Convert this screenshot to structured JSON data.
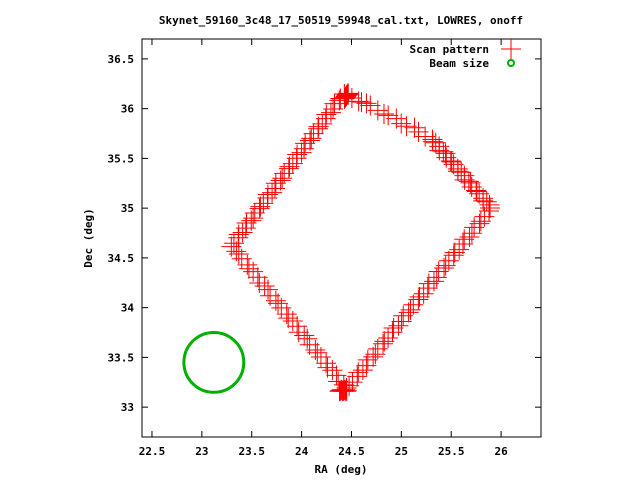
{
  "chart_data": {
    "type": "scatter",
    "title": "Skynet_59160_3c48_17_50519_59948_cal.txt, LOWRES, onoff",
    "xlabel": "RA (deg)",
    "ylabel": "Dec (deg)",
    "xlim": [
      22.4,
      26.4
    ],
    "ylim": [
      32.7,
      36.7
    ],
    "x_ticks": [
      "22.5",
      "23",
      "23.5",
      "24",
      "24.5",
      "25",
      "25.5",
      "26"
    ],
    "y_ticks": [
      "33",
      "33.5",
      "34",
      "34.5",
      "35",
      "35.5",
      "36",
      "36.5"
    ],
    "legend_position": "top-right",
    "series": [
      {
        "name": "Scan pattern",
        "marker": "plus",
        "color": "#ff0000",
        "path_vertices": [
          {
            "x": 24.45,
            "y": 33.18
          },
          {
            "x": 23.3,
            "y": 34.62
          },
          {
            "x": 24.42,
            "y": 36.15
          },
          {
            "x": 24.7,
            "y": 36.02
          },
          {
            "x": 25.3,
            "y": 35.7
          },
          {
            "x": 25.9,
            "y": 35.0
          },
          {
            "x": 24.45,
            "y": 33.18
          }
        ]
      },
      {
        "name": "Beam size",
        "marker": "circle",
        "color": "#00b000",
        "center": {
          "x": 23.12,
          "y": 33.45
        },
        "radius_deg": 0.3
      }
    ]
  }
}
